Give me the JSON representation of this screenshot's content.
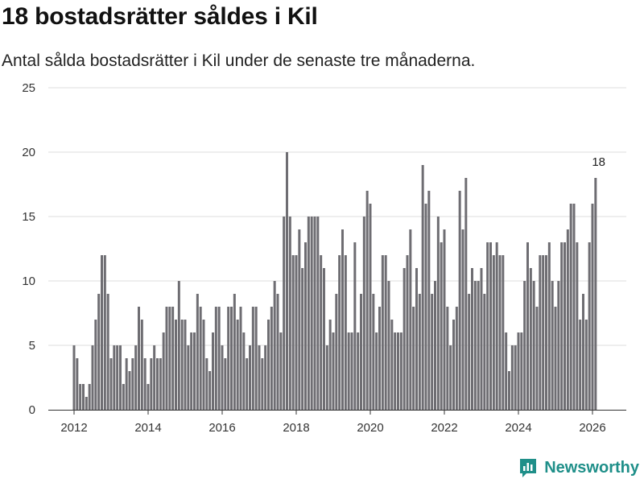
{
  "header": {
    "title": "18 bostadsrätter såldes i Kil",
    "subtitle": "Antal sålda bostadsrätter i Kil under de senaste tre månaderna."
  },
  "brand": {
    "name": "Newsworthy",
    "icon": "newsworthy-logo-icon",
    "color": "#1f8f89"
  },
  "colors": {
    "bar": "#6e6d72",
    "highlight": "#16958d",
    "grid": "#dddddd",
    "axis": "#333333"
  },
  "chart_data": {
    "type": "bar",
    "title": "18 bostadsrätter såldes i Kil",
    "subtitle": "Antal sålda bostadsrätter i Kil under de senaste tre månaderna.",
    "xlabel": "",
    "ylabel": "",
    "ylim": [
      0,
      25
    ],
    "yticks": [
      0,
      5,
      10,
      15,
      20,
      25
    ],
    "xticks": [
      "2012",
      "2014",
      "2016",
      "2018",
      "2020",
      "2022",
      "2024",
      "2026"
    ],
    "x_start": "2012-01",
    "frequency": "monthly",
    "grid": true,
    "highlight": {
      "label": "18",
      "value": 18,
      "index": 170
    },
    "values": [
      5,
      4,
      2,
      2,
      1,
      2,
      5,
      7,
      9,
      12,
      12,
      9,
      4,
      5,
      5,
      5,
      2,
      4,
      3,
      4,
      5,
      8,
      7,
      4,
      2,
      4,
      5,
      4,
      4,
      6,
      8,
      8,
      8,
      7,
      10,
      7,
      7,
      5,
      6,
      6,
      9,
      8,
      7,
      4,
      3,
      6,
      8,
      8,
      5,
      4,
      8,
      8,
      9,
      7,
      8,
      6,
      4,
      5,
      8,
      8,
      5,
      4,
      5,
      7,
      8,
      10,
      9,
      6,
      15,
      20,
      15,
      12,
      12,
      14,
      11,
      13,
      15,
      15,
      15,
      15,
      12,
      11,
      5,
      7,
      6,
      9,
      12,
      14,
      12,
      6,
      6,
      13,
      6,
      9,
      15,
      17,
      16,
      9,
      6,
      8,
      12,
      12,
      10,
      7,
      6,
      6,
      6,
      11,
      12,
      14,
      8,
      11,
      9,
      19,
      16,
      17,
      9,
      10,
      15,
      13,
      14,
      8,
      5,
      7,
      8,
      17,
      14,
      18,
      9,
      11,
      10,
      10,
      11,
      9,
      13,
      13,
      12,
      13,
      12,
      12,
      6,
      3,
      5,
      5,
      6,
      6,
      10,
      13,
      11,
      10,
      8,
      12,
      12,
      12,
      13,
      10,
      8,
      10,
      13,
      13,
      14,
      16,
      16,
      13,
      7,
      9,
      7,
      13,
      16,
      18
    ]
  }
}
